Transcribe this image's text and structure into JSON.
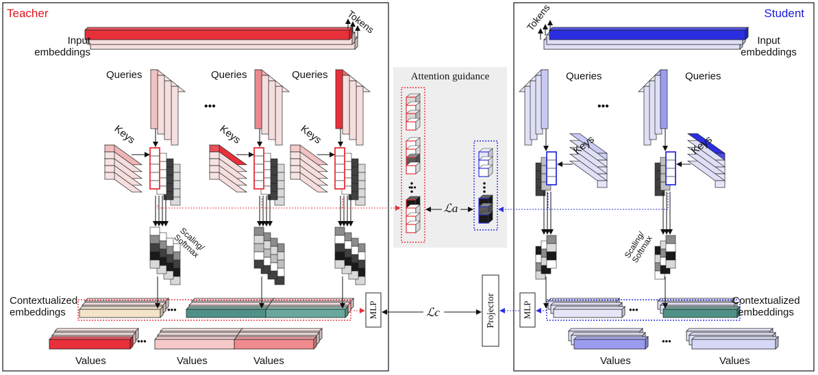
{
  "teacher": {
    "title": "Teacher",
    "input_embeddings": "Input\nembeddings",
    "tokens": "Tokens",
    "queries": "Queries",
    "keys": "Keys",
    "scaling_softmax": "Scaling/\nSoftmax",
    "contextualized_embeddings": "Contextualized\nembeddings",
    "values": "Values",
    "mlp": "MLP"
  },
  "student": {
    "title": "Student",
    "input_embeddings": "Input\nembeddings",
    "tokens": "Tokens",
    "queries": "Queries",
    "keys": "Keys",
    "scaling_softmax": "Scaling/\nSoftmax",
    "contextualized_embeddings": "Contextualized\nembeddings",
    "values": "Values",
    "mlp": "MLP",
    "projector": "Projector"
  },
  "attention_guidance": {
    "title": "Attention guidance",
    "loss_attention": "ℒa",
    "loss_contextual": "ℒc"
  },
  "ellipsis": "•••",
  "colors": {
    "teacher_red": "#e8303a",
    "teacher_title": "#e0141e",
    "student_blue": "#2b2ee0",
    "student_title": "#1a1ad6",
    "teal": "#4f9186",
    "guidance_bg": "#eeeeee"
  }
}
